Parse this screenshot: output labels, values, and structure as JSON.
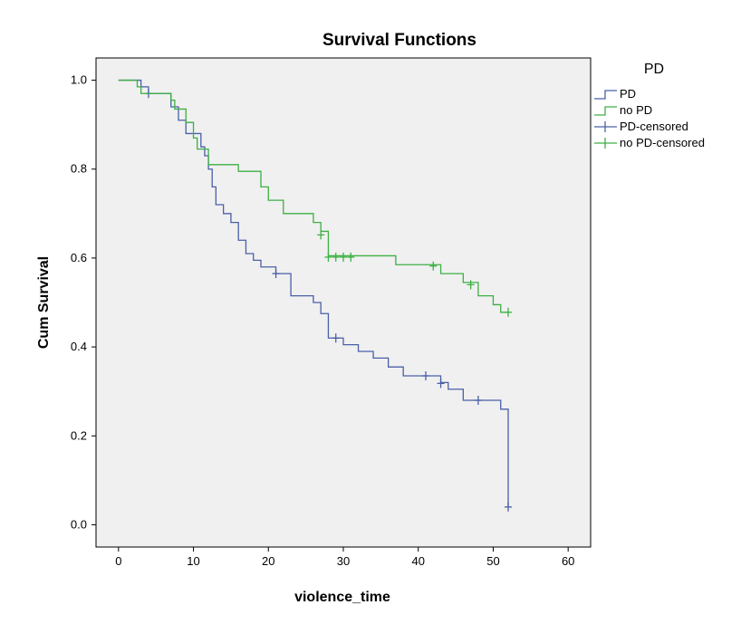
{
  "chart_data": {
    "type": "line",
    "step": true,
    "title": "Survival Functions",
    "xlabel": "violence_time",
    "ylabel": "Cum Survival",
    "xlim": [
      -3,
      63
    ],
    "ylim": [
      -0.05,
      1.05
    ],
    "x_ticks": [
      0,
      10,
      20,
      30,
      40,
      50,
      60
    ],
    "y_ticks": [
      "0.0",
      "0.2",
      "0.4",
      "0.6",
      "0.8",
      "1.0"
    ],
    "grid": false,
    "legend_title": "PD",
    "legend_position": "right",
    "legend": [
      {
        "label": "PD",
        "kind": "step",
        "color": "#4a5fa8"
      },
      {
        "label": "no PD",
        "kind": "step",
        "color": "#3cb043"
      },
      {
        "label": "PD-censored",
        "kind": "censor",
        "color": "#4a5fa8"
      },
      {
        "label": "no PD-censored",
        "kind": "censor",
        "color": "#3cb043"
      }
    ],
    "series": [
      {
        "name": "PD",
        "color": "#4a5fa8",
        "steps": [
          [
            0,
            1.0
          ],
          [
            3,
            0.985
          ],
          [
            4,
            0.97
          ],
          [
            7,
            0.94
          ],
          [
            8,
            0.91
          ],
          [
            9,
            0.88
          ],
          [
            11,
            0.85
          ],
          [
            11.5,
            0.83
          ],
          [
            12,
            0.8
          ],
          [
            12.5,
            0.76
          ],
          [
            13,
            0.72
          ],
          [
            14,
            0.7
          ],
          [
            15,
            0.68
          ],
          [
            16,
            0.64
          ],
          [
            17,
            0.61
          ],
          [
            18,
            0.595
          ],
          [
            19,
            0.58
          ],
          [
            21,
            0.565
          ],
          [
            23,
            0.515
          ],
          [
            26,
            0.5
          ],
          [
            27,
            0.475
          ],
          [
            28,
            0.42
          ],
          [
            30,
            0.405
          ],
          [
            32,
            0.39
          ],
          [
            34,
            0.375
          ],
          [
            36,
            0.355
          ],
          [
            38,
            0.335
          ],
          [
            43,
            0.32
          ],
          [
            44,
            0.305
          ],
          [
            46,
            0.28
          ],
          [
            51,
            0.26
          ],
          [
            52,
            0.04
          ]
        ],
        "censored": [
          [
            4,
            0.97
          ],
          [
            21,
            0.565
          ],
          [
            29,
            0.42
          ],
          [
            41,
            0.335
          ],
          [
            43,
            0.318
          ],
          [
            48,
            0.28
          ],
          [
            52,
            0.04
          ]
        ]
      },
      {
        "name": "no PD",
        "color": "#3cb043",
        "steps": [
          [
            0,
            1.0
          ],
          [
            2.5,
            0.985
          ],
          [
            3,
            0.97
          ],
          [
            7,
            0.955
          ],
          [
            7.5,
            0.935
          ],
          [
            9,
            0.905
          ],
          [
            10,
            0.87
          ],
          [
            10.5,
            0.845
          ],
          [
            12,
            0.81
          ],
          [
            16,
            0.795
          ],
          [
            19,
            0.76
          ],
          [
            20,
            0.73
          ],
          [
            22,
            0.7
          ],
          [
            26,
            0.68
          ],
          [
            27,
            0.66
          ],
          [
            28,
            0.605
          ],
          [
            37,
            0.585
          ],
          [
            43,
            0.565
          ],
          [
            46,
            0.545
          ],
          [
            48,
            0.515
          ],
          [
            50,
            0.495
          ],
          [
            51,
            0.478
          ]
        ],
        "censored": [
          [
            27,
            0.652
          ],
          [
            28,
            0.602
          ],
          [
            29,
            0.602
          ],
          [
            30,
            0.602
          ],
          [
            31,
            0.602
          ],
          [
            42,
            0.582
          ],
          [
            47,
            0.54
          ],
          [
            52,
            0.478
          ]
        ]
      }
    ]
  }
}
